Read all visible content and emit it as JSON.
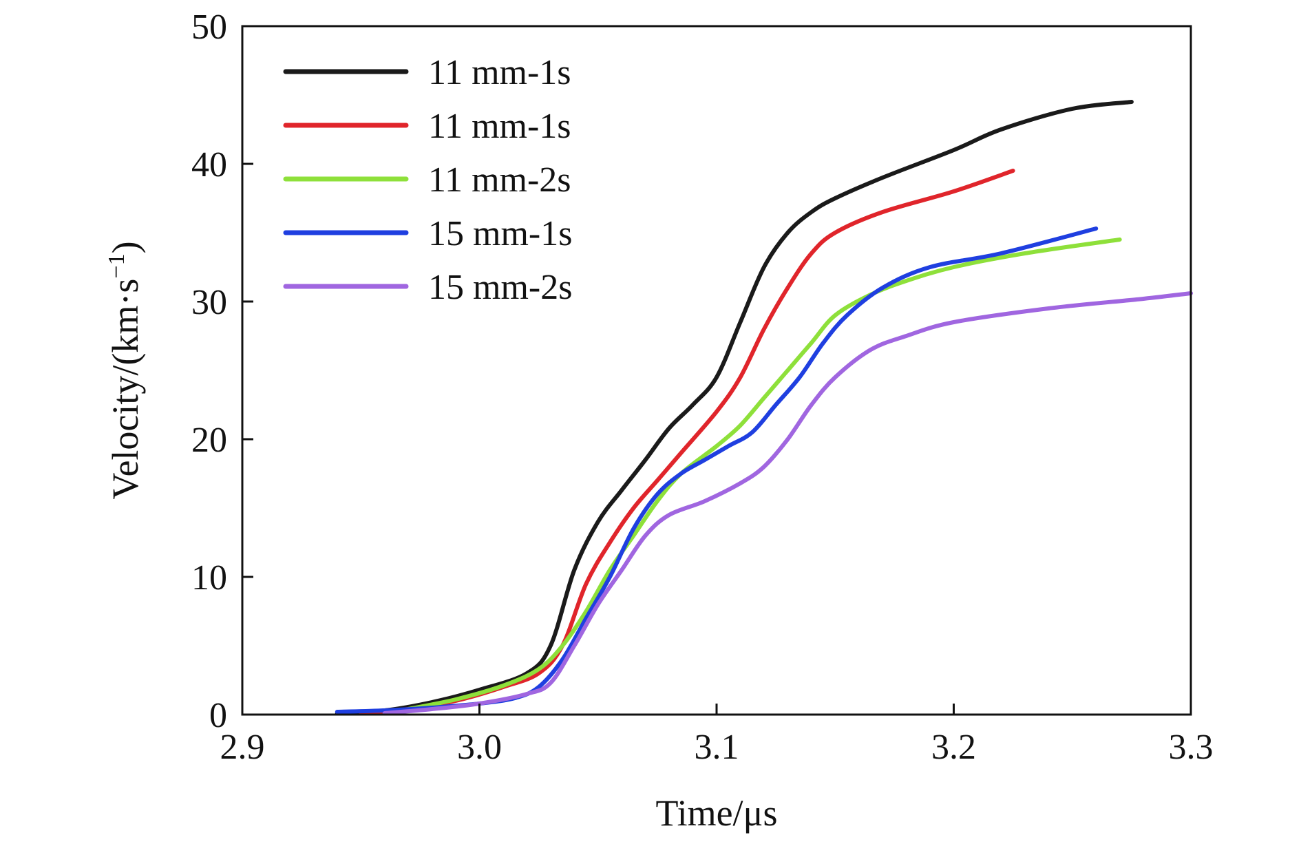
{
  "chart_data": {
    "type": "line",
    "xlabel": "Time/μs",
    "ylabel": "Velocity/(km·s",
    "ylabel_superscript": "−1",
    "ylabel_suffix": ")",
    "xlim": [
      2.9,
      3.3
    ],
    "ylim": [
      0,
      50
    ],
    "x_ticks": [
      "2.9",
      "3.0",
      "3.1",
      "3.2",
      "3.3"
    ],
    "y_ticks": [
      "0",
      "10",
      "20",
      "30",
      "40",
      "50"
    ],
    "grid": false,
    "legend_position": "top-left",
    "series": [
      {
        "name": "11 mm-1s",
        "color": "#1a1a1a",
        "points": [
          [
            2.94,
            0.1
          ],
          [
            2.96,
            0.3
          ],
          [
            2.98,
            0.9
          ],
          [
            3.0,
            1.8
          ],
          [
            3.02,
            3.0
          ],
          [
            3.03,
            5.0
          ],
          [
            3.04,
            10.5
          ],
          [
            3.05,
            14.0
          ],
          [
            3.06,
            16.3
          ],
          [
            3.07,
            18.5
          ],
          [
            3.08,
            20.8
          ],
          [
            3.09,
            22.5
          ],
          [
            3.1,
            24.5
          ],
          [
            3.11,
            28.5
          ],
          [
            3.12,
            32.5
          ],
          [
            3.13,
            35.0
          ],
          [
            3.14,
            36.5
          ],
          [
            3.15,
            37.5
          ],
          [
            3.17,
            39.0
          ],
          [
            3.2,
            41.0
          ],
          [
            3.22,
            42.5
          ],
          [
            3.25,
            44.0
          ],
          [
            3.275,
            44.5
          ]
        ]
      },
      {
        "name": "11 mm-1s",
        "color": "#e0252b",
        "points": [
          [
            2.95,
            0.1
          ],
          [
            2.97,
            0.4
          ],
          [
            2.99,
            1.0
          ],
          [
            3.01,
            2.0
          ],
          [
            3.025,
            3.0
          ],
          [
            3.035,
            5.0
          ],
          [
            3.045,
            9.5
          ],
          [
            3.055,
            12.5
          ],
          [
            3.065,
            15.0
          ],
          [
            3.075,
            17.0
          ],
          [
            3.085,
            19.0
          ],
          [
            3.1,
            22.0
          ],
          [
            3.11,
            24.5
          ],
          [
            3.12,
            28.0
          ],
          [
            3.13,
            31.0
          ],
          [
            3.14,
            33.5
          ],
          [
            3.15,
            35.0
          ],
          [
            3.17,
            36.5
          ],
          [
            3.2,
            38.0
          ],
          [
            3.225,
            39.5
          ]
        ]
      },
      {
        "name": "11 mm-2s",
        "color": "#8ee03a",
        "points": [
          [
            2.97,
            0.4
          ],
          [
            2.99,
            1.1
          ],
          [
            3.01,
            2.1
          ],
          [
            3.025,
            3.3
          ],
          [
            3.035,
            5.0
          ],
          [
            3.045,
            7.5
          ],
          [
            3.055,
            10.5
          ],
          [
            3.065,
            13.0
          ],
          [
            3.075,
            15.5
          ],
          [
            3.085,
            17.5
          ],
          [
            3.1,
            19.5
          ],
          [
            3.11,
            21.0
          ],
          [
            3.12,
            23.0
          ],
          [
            3.13,
            25.0
          ],
          [
            3.14,
            27.0
          ],
          [
            3.15,
            29.0
          ],
          [
            3.165,
            30.5
          ],
          [
            3.18,
            31.5
          ],
          [
            3.2,
            32.5
          ],
          [
            3.23,
            33.5
          ],
          [
            3.27,
            34.5
          ]
        ]
      },
      {
        "name": "15 mm-1s",
        "color": "#1f3fe0",
        "points": [
          [
            2.94,
            0.2
          ],
          [
            2.96,
            0.3
          ],
          [
            2.98,
            0.5
          ],
          [
            3.0,
            0.8
          ],
          [
            3.015,
            1.2
          ],
          [
            3.025,
            2.0
          ],
          [
            3.035,
            4.0
          ],
          [
            3.045,
            7.0
          ],
          [
            3.055,
            10.0
          ],
          [
            3.065,
            13.5
          ],
          [
            3.075,
            16.0
          ],
          [
            3.085,
            17.5
          ],
          [
            3.095,
            18.5
          ],
          [
            3.105,
            19.5
          ],
          [
            3.115,
            20.5
          ],
          [
            3.125,
            22.5
          ],
          [
            3.135,
            24.5
          ],
          [
            3.145,
            27.0
          ],
          [
            3.155,
            29.0
          ],
          [
            3.17,
            31.0
          ],
          [
            3.19,
            32.5
          ],
          [
            3.22,
            33.5
          ],
          [
            3.26,
            35.3
          ]
        ]
      },
      {
        "name": "15 mm-2s",
        "color": "#a066e0",
        "points": [
          [
            2.96,
            0.1
          ],
          [
            2.98,
            0.4
          ],
          [
            3.0,
            0.8
          ],
          [
            3.02,
            1.5
          ],
          [
            3.03,
            2.3
          ],
          [
            3.04,
            5.0
          ],
          [
            3.05,
            8.0
          ],
          [
            3.06,
            10.5
          ],
          [
            3.07,
            13.0
          ],
          [
            3.08,
            14.5
          ],
          [
            3.095,
            15.5
          ],
          [
            3.11,
            16.8
          ],
          [
            3.12,
            18.0
          ],
          [
            3.13,
            20.0
          ],
          [
            3.14,
            22.5
          ],
          [
            3.15,
            24.5
          ],
          [
            3.165,
            26.5
          ],
          [
            3.18,
            27.5
          ],
          [
            3.2,
            28.5
          ],
          [
            3.24,
            29.5
          ],
          [
            3.28,
            30.2
          ],
          [
            3.3,
            30.6
          ]
        ]
      }
    ]
  }
}
